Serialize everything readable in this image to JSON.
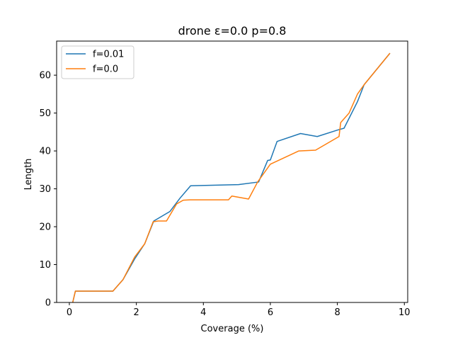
{
  "chart_data": {
    "type": "line",
    "title": "drone ε=0.0 p=0.8",
    "xlabel": "Coverage (%)",
    "ylabel": "Length",
    "xlim": [
      -0.38,
      10.1
    ],
    "ylim": [
      0,
      69
    ],
    "xticks": [
      0,
      2,
      4,
      6,
      8,
      10
    ],
    "yticks": [
      0,
      10,
      20,
      30,
      40,
      50,
      60
    ],
    "grid": false,
    "legend_position": "top-left",
    "series": [
      {
        "name": "f=0.01",
        "color": "#1f77b4",
        "x": [
          0.1,
          0.18,
          0.2,
          1.3,
          1.6,
          1.95,
          2.25,
          2.52,
          3.0,
          3.3,
          3.62,
          5.05,
          5.65,
          5.92,
          6.0,
          6.2,
          6.9,
          7.4,
          8.0,
          8.2,
          8.6,
          8.8,
          9.57
        ],
        "y": [
          0,
          3,
          3,
          3,
          6,
          11.5,
          15.5,
          21.5,
          24,
          27.5,
          30.8,
          31.1,
          31.8,
          37.5,
          37.6,
          42.5,
          44.6,
          43.8,
          45.5,
          46,
          53,
          57.5,
          65.8
        ]
      },
      {
        "name": "f=0.0",
        "color": "#ff7f0e",
        "x": [
          0.1,
          0.18,
          0.2,
          1.3,
          1.6,
          1.95,
          2.25,
          2.5,
          2.65,
          2.9,
          3.2,
          3.4,
          3.6,
          4.75,
          4.85,
          5.35,
          5.62,
          6.0,
          6.85,
          7.35,
          8.05,
          8.1,
          8.35,
          8.6,
          8.8,
          9.57
        ],
        "y": [
          0,
          3,
          3,
          3,
          6,
          12,
          15.5,
          21.3,
          21.5,
          21.5,
          26,
          27,
          27.1,
          27.1,
          28.1,
          27.3,
          31.8,
          36.5,
          40,
          40.2,
          43.8,
          47.5,
          50,
          55,
          57.5,
          65.8
        ]
      }
    ]
  }
}
